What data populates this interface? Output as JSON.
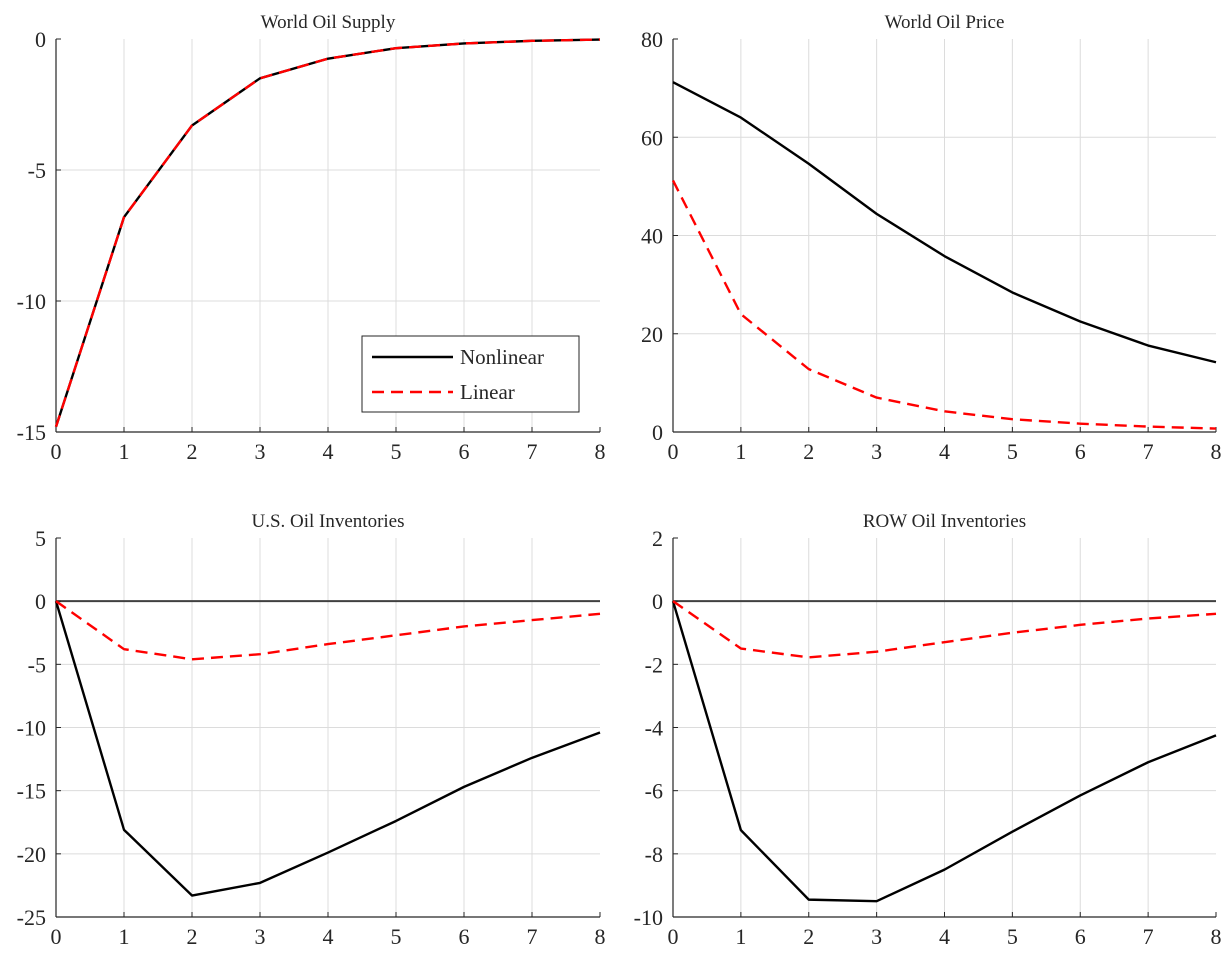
{
  "chart_data": [
    {
      "type": "line",
      "title": "World Oil Supply",
      "x": [
        0,
        1,
        2,
        3,
        4,
        5,
        6,
        7,
        8
      ],
      "xlim": [
        0,
        8
      ],
      "ylim": [
        -15,
        0
      ],
      "xticks": [
        "0",
        "1",
        "2",
        "3",
        "4",
        "5",
        "6",
        "7",
        "8"
      ],
      "yticks": [
        "0",
        "-5",
        "-10",
        "-15"
      ],
      "ytick_values": [
        0,
        -5,
        -10,
        -15
      ],
      "grid": true,
      "zero_line": false,
      "legend": {
        "placement": "bottom-right",
        "entries": [
          "Nonlinear",
          "Linear"
        ]
      },
      "series": [
        {
          "name": "Nonlinear",
          "color": "#000000",
          "style": "solid",
          "values": [
            -14.8,
            -6.8,
            -3.3,
            -1.5,
            -0.75,
            -0.35,
            -0.17,
            -0.07,
            -0.02
          ]
        },
        {
          "name": "Linear",
          "color": "#ff0000",
          "style": "dashed",
          "values": [
            -14.8,
            -6.8,
            -3.3,
            -1.5,
            -0.75,
            -0.35,
            -0.17,
            -0.07,
            -0.02
          ]
        }
      ]
    },
    {
      "type": "line",
      "title": "World Oil Price",
      "x": [
        0,
        1,
        2,
        3,
        4,
        5,
        6,
        7,
        8
      ],
      "xlim": [
        0,
        8
      ],
      "ylim": [
        0,
        80
      ],
      "xticks": [
        "0",
        "1",
        "2",
        "3",
        "4",
        "5",
        "6",
        "7",
        "8"
      ],
      "yticks": [
        "80",
        "60",
        "40",
        "20",
        "0"
      ],
      "ytick_values": [
        80,
        60,
        40,
        20,
        0
      ],
      "grid": true,
      "zero_line": false,
      "series": [
        {
          "color": "#000000",
          "style": "solid",
          "values": [
            71.2,
            64.0,
            54.6,
            44.4,
            35.8,
            28.4,
            22.5,
            17.6,
            14.2
          ]
        },
        {
          "color": "#ff0000",
          "style": "dashed",
          "values": [
            51.2,
            24.0,
            12.8,
            7.0,
            4.2,
            2.6,
            1.7,
            1.1,
            0.7
          ]
        }
      ]
    },
    {
      "type": "line",
      "title": "U.S. Oil Inventories",
      "x": [
        0,
        1,
        2,
        3,
        4,
        5,
        6,
        7,
        8
      ],
      "xlim": [
        0,
        8
      ],
      "ylim": [
        -25,
        5
      ],
      "xticks": [
        "0",
        "1",
        "2",
        "3",
        "4",
        "5",
        "6",
        "7",
        "8"
      ],
      "yticks": [
        "5",
        "0",
        "-5",
        "-10",
        "-15",
        "-20",
        "-25"
      ],
      "ytick_values": [
        5,
        0,
        -5,
        -10,
        -15,
        -20,
        -25
      ],
      "grid": true,
      "zero_line": true,
      "series": [
        {
          "color": "#000000",
          "style": "solid",
          "values": [
            0,
            -18.1,
            -23.3,
            -22.3,
            -19.9,
            -17.4,
            -14.7,
            -12.4,
            -10.4
          ]
        },
        {
          "color": "#ff0000",
          "style": "dashed",
          "values": [
            0,
            -3.8,
            -4.6,
            -4.2,
            -3.4,
            -2.7,
            -2.0,
            -1.5,
            -1.0
          ]
        }
      ]
    },
    {
      "type": "line",
      "title": "ROW Oil Inventories",
      "x": [
        0,
        1,
        2,
        3,
        4,
        5,
        6,
        7,
        8
      ],
      "xlim": [
        0,
        8
      ],
      "ylim": [
        -10,
        2
      ],
      "xticks": [
        "0",
        "1",
        "2",
        "3",
        "4",
        "5",
        "6",
        "7",
        "8"
      ],
      "yticks": [
        "2",
        "0",
        "-2",
        "-4",
        "-6",
        "-8",
        "-10"
      ],
      "ytick_values": [
        2,
        0,
        -2,
        -4,
        -6,
        -8,
        -10
      ],
      "grid": true,
      "zero_line": true,
      "series": [
        {
          "color": "#000000",
          "style": "solid",
          "values": [
            0,
            -7.25,
            -9.45,
            -9.5,
            -8.5,
            -7.3,
            -6.15,
            -5.1,
            -4.25
          ]
        },
        {
          "color": "#ff0000",
          "style": "dashed",
          "values": [
            0,
            -1.5,
            -1.78,
            -1.6,
            -1.3,
            -1.0,
            -0.75,
            -0.55,
            -0.4
          ]
        }
      ]
    }
  ]
}
